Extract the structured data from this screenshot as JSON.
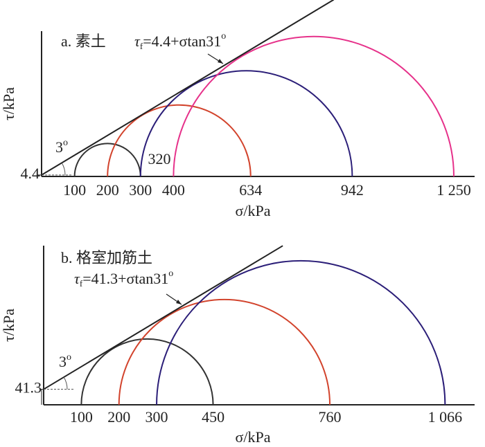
{
  "chart_data": [
    {
      "type": "mohr",
      "title": "a. 素土",
      "x_label": "σ/kPa",
      "y_label": "τ/kPa",
      "intercept": 4.4,
      "phi": 31,
      "envelope_label_parts": [
        "τ",
        "f",
        "=",
        "+σtan",
        "o"
      ],
      "angle_label": "3",
      "angle_label_sup": "o",
      "annotation": "320",
      "yticks": [
        4.4
      ],
      "xticks": [
        100,
        200,
        300,
        400,
        634,
        942,
        {
          "value": 1250,
          "label": "1 250"
        }
      ],
      "circles": [
        {
          "sigma3": 100,
          "sigma1": 300,
          "color": "#333333"
        },
        {
          "sigma3": 200,
          "sigma1": 634,
          "color": "#d2432c"
        },
        {
          "sigma3": 300,
          "sigma1": 942,
          "color": "#2b1e78"
        },
        {
          "sigma3": 400,
          "sigma1": 1250,
          "color": "#e6318a"
        }
      ]
    },
    {
      "type": "mohr",
      "title": "b. 格室加筋土",
      "x_label": "σ/kPa",
      "y_label": "τ/kPa",
      "intercept": 41.3,
      "phi": 31,
      "envelope_label_parts": [
        "τ",
        "f",
        "=",
        "+σtan",
        "o"
      ],
      "angle_label": "3",
      "angle_label_sup": "o",
      "yticks": [
        41.3
      ],
      "xticks": [
        100,
        200,
        300,
        450,
        760,
        {
          "value": 1066,
          "label": "1 066"
        }
      ],
      "circles": [
        {
          "sigma3": 100,
          "sigma1": 450,
          "color": "#333333"
        },
        {
          "sigma3": 200,
          "sigma1": 760,
          "color": "#d2432c"
        },
        {
          "sigma3": 300,
          "sigma1": 1066,
          "color": "#2b1e78"
        }
      ]
    }
  ]
}
